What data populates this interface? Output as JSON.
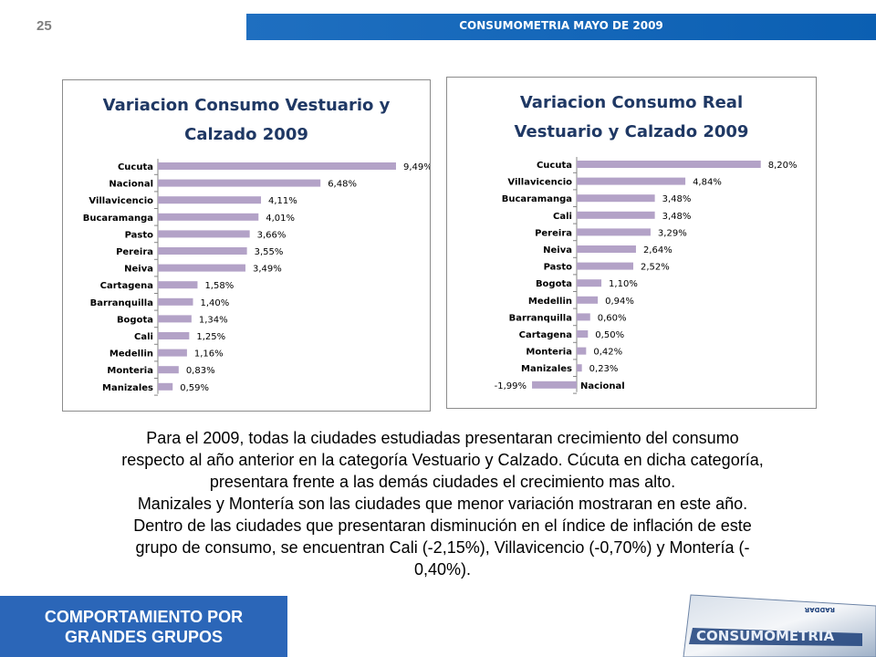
{
  "page_number": "25",
  "header": {
    "title": "CONSUMOMETRIA MAYO DE 2009"
  },
  "chart_data": [
    {
      "type": "bar",
      "orientation": "horizontal",
      "title": "Variacion Consumo Vestuario y Calzado 2009",
      "title_lines": [
        "Variacion Consumo Vestuario y",
        "Calzado 2009"
      ],
      "categories": [
        "Cucuta",
        "Nacional",
        "Villavicencio",
        "Bucaramanga",
        "Pasto",
        "Pereira",
        "Neiva",
        "Cartagena",
        "Barranquilla",
        "Bogota",
        "Cali",
        "Medellin",
        "Monteria",
        "Manizales"
      ],
      "values": [
        9.49,
        6.48,
        4.11,
        4.01,
        3.66,
        3.55,
        3.49,
        1.58,
        1.4,
        1.34,
        1.25,
        1.16,
        0.83,
        0.59
      ],
      "labels": [
        "9,49%",
        "6,48%",
        "4,11%",
        "4,01%",
        "3,66%",
        "3,55%",
        "3,49%",
        "1,58%",
        "1,40%",
        "1,34%",
        "1,25%",
        "1,16%",
        "0,83%",
        "0,59%"
      ],
      "xlim": [
        0,
        10
      ],
      "bar_color": "#b3a2c7",
      "grid": false,
      "legend": "none"
    },
    {
      "type": "bar",
      "orientation": "horizontal",
      "title": "Variacion Consumo Real Vestuario y Calzado 2009",
      "title_lines": [
        "Variacion Consumo Real",
        "Vestuario y Calzado 2009"
      ],
      "categories": [
        "Cucuta",
        "Villavicencio",
        "Bucaramanga",
        "Cali",
        "Pereira",
        "Neiva",
        "Pasto",
        "Bogota",
        "Medellin",
        "Barranquilla",
        "Cartagena",
        "Monteria",
        "Manizales",
        "Nacional"
      ],
      "values": [
        8.2,
        4.84,
        3.48,
        3.48,
        3.29,
        2.64,
        2.52,
        1.1,
        0.94,
        0.6,
        0.5,
        0.42,
        0.23,
        -1.99
      ],
      "labels": [
        "8,20%",
        "4,84%",
        "3,48%",
        "3,48%",
        "3,29%",
        "2,64%",
        "2,52%",
        "1,10%",
        "0,94%",
        "0,60%",
        "0,50%",
        "0,42%",
        "0,23%",
        "-1,99%"
      ],
      "xlim": [
        -2.5,
        9
      ],
      "bar_color": "#b3a2c7",
      "grid": false,
      "legend": "none"
    }
  ],
  "body_text": [
    "Para el 2009, todas la ciudades estudiadas presentaran crecimiento del consumo",
    "respecto al año anterior en la categoría Vestuario y Calzado.  Cúcuta en dicha categoría,",
    "presentara frente a las demás ciudades el crecimiento mas alto.",
    "Manizales y Montería son las ciudades que menor variación mostraran en este año.",
    "Dentro de las ciudades que presentaran disminución en el índice de inflación de este",
    "grupo de consumo, se encuentran Cali (-2,15%), Villavicencio (-0,70%) y Montería (-",
    "0,40%)."
  ],
  "footer": {
    "line1": "COMPORTAMIENTO POR",
    "line2": "GRANDES GRUPOS"
  },
  "logo": {
    "text": "CONSUMOMETRIA",
    "subtext": "RADDAR",
    "icon": "consumometria-logo"
  }
}
